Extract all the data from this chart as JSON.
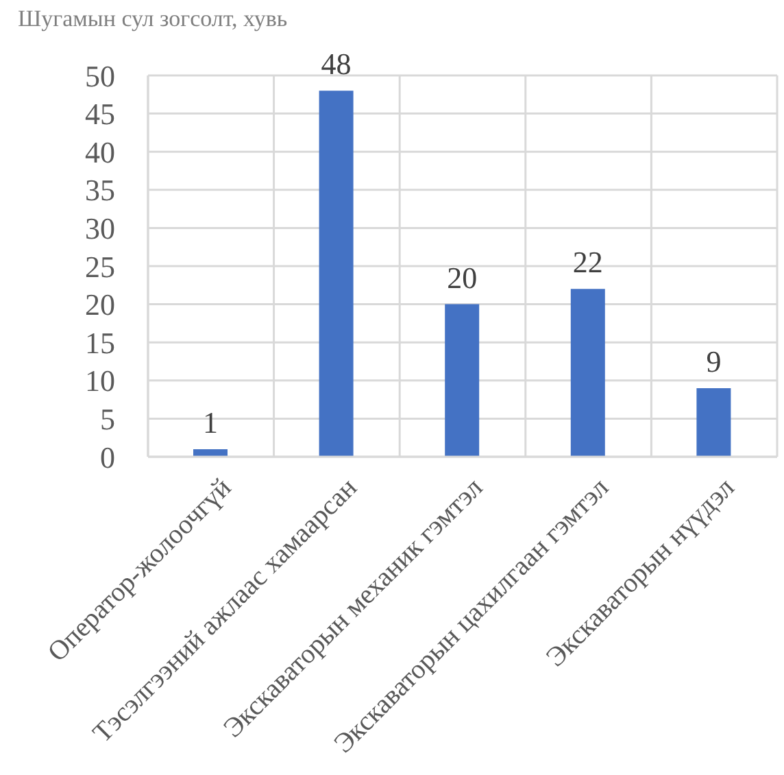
{
  "chart_data": {
    "type": "bar",
    "title": "Шугамын сул зогсолт, хувь",
    "categories": [
      "Оператор-жолоочгүй",
      "Тэсэлгээний ажлаас хамаарсан",
      "Экскаваторын механик гэмтэл",
      "Экскаваторын цахилгаан гэмтэл",
      "Экскаваторын нүүдэл"
    ],
    "values": [
      1,
      48,
      20,
      22,
      9
    ],
    "color": "#4472c4",
    "ylim": [
      0,
      50
    ],
    "yticks": [
      0,
      5,
      10,
      15,
      20,
      25,
      30,
      35,
      40,
      45,
      50
    ],
    "grid": true,
    "data_labels": true
  }
}
